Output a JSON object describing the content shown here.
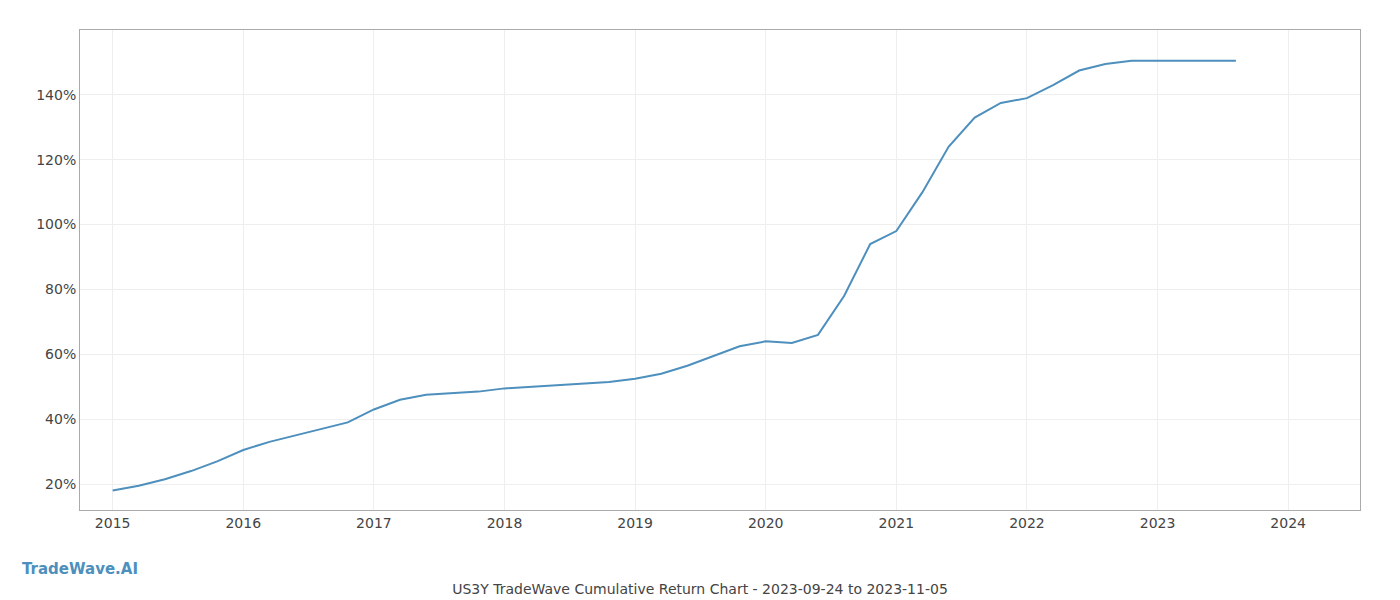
{
  "chart_data": {
    "type": "line",
    "title": "US3Y TradeWave Cumulative Return Chart - 2023-09-24 to 2023-11-05",
    "x": [
      2015.0,
      2015.2,
      2015.4,
      2015.6,
      2015.8,
      2016.0,
      2016.2,
      2016.4,
      2016.6,
      2016.8,
      2017.0,
      2017.2,
      2017.4,
      2017.6,
      2017.8,
      2018.0,
      2018.2,
      2018.4,
      2018.6,
      2018.8,
      2019.0,
      2019.2,
      2019.4,
      2019.6,
      2019.8,
      2020.0,
      2020.2,
      2020.4,
      2020.6,
      2020.8,
      2021.0,
      2021.2,
      2021.4,
      2021.6,
      2021.8,
      2022.0,
      2022.2,
      2022.4,
      2022.6,
      2022.8,
      2023.0,
      2023.2,
      2023.6
    ],
    "values": [
      18.0,
      19.5,
      21.5,
      24.0,
      27.0,
      30.5,
      33.0,
      35.0,
      37.0,
      39.0,
      43.0,
      46.0,
      47.5,
      48.0,
      48.5,
      49.5,
      50.0,
      50.5,
      51.0,
      51.5,
      52.5,
      54.0,
      56.5,
      59.5,
      62.5,
      64.0,
      63.5,
      66.0,
      78.0,
      94.0,
      98.0,
      110.0,
      124.0,
      133.0,
      137.5,
      139.0,
      143.0,
      147.5,
      149.5,
      150.5,
      150.5,
      150.5,
      150.5
    ],
    "color": "#4d8fbd",
    "xlim": [
      2014.75,
      2024.55
    ],
    "ylim": [
      12,
      160
    ],
    "xticks": [
      2015,
      2016,
      2017,
      2018,
      2019,
      2020,
      2021,
      2022,
      2023,
      2024
    ],
    "yticks": [
      {
        "value": 20,
        "label": "20%"
      },
      {
        "value": 40,
        "label": "40%"
      },
      {
        "value": 60,
        "label": "60%"
      },
      {
        "value": 80,
        "label": "80%"
      },
      {
        "value": 100,
        "label": "100%"
      },
      {
        "value": 120,
        "label": "120%"
      },
      {
        "value": 140,
        "label": "140%"
      }
    ],
    "grid": true,
    "annotations": [
      {
        "text": "TradeWave.AI",
        "color": "#4d8fbd"
      }
    ]
  }
}
